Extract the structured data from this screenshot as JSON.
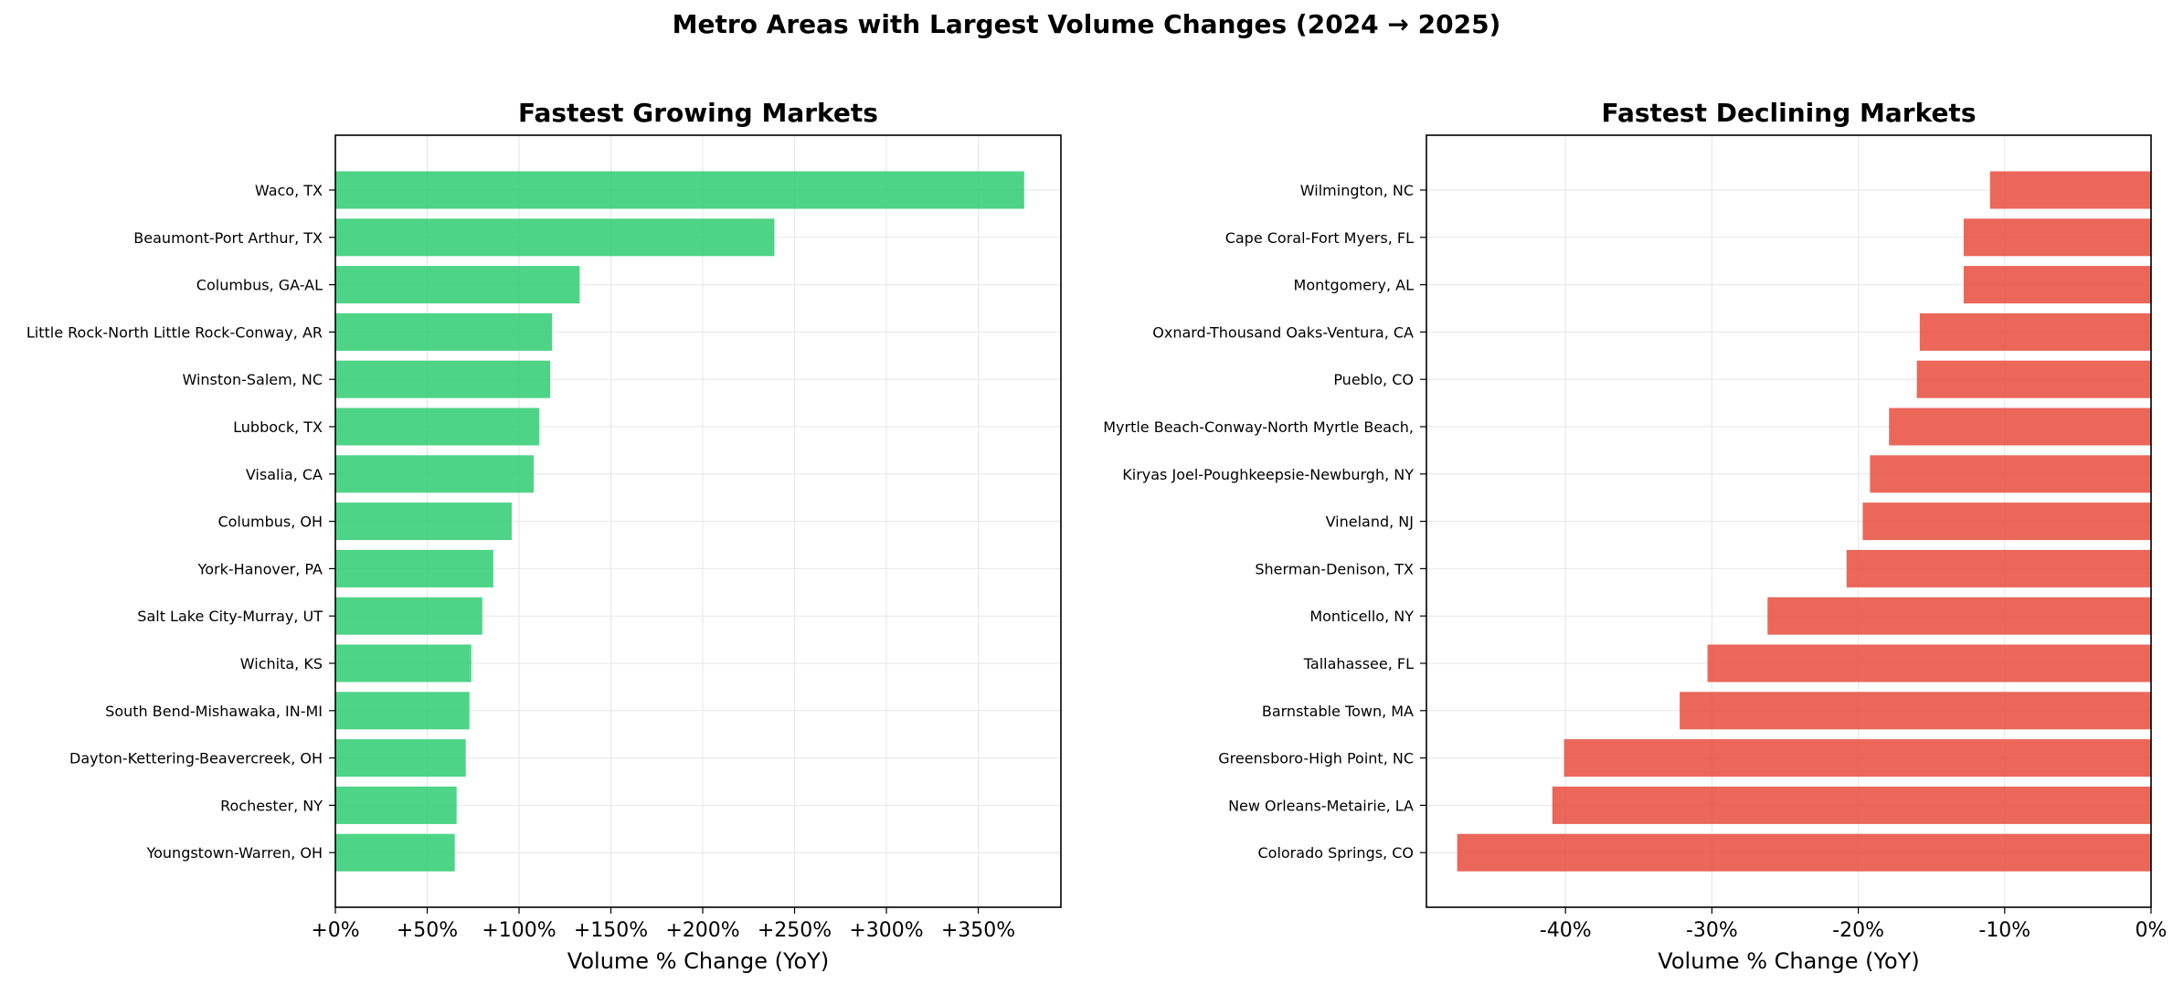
{
  "suptitle": "Metro Areas with Largest Volume Changes (2024 → 2025)",
  "colors": {
    "growth": "#2ecc71",
    "decline": "#e74c3c",
    "grid": "#e6e6e6",
    "axis": "#000000"
  },
  "chart_data": [
    {
      "type": "bar",
      "orientation": "horizontal",
      "title": "Fastest Growing Markets",
      "xlabel": "Volume % Change (YoY)",
      "ylabel": "",
      "xlim": [
        0,
        395
      ],
      "xticks": [
        0,
        50,
        100,
        150,
        200,
        250,
        300,
        350
      ],
      "xtick_labels": [
        "+0%",
        "+50%",
        "+100%",
        "+150%",
        "+200%",
        "+250%",
        "+300%",
        "+350%"
      ],
      "grid": true,
      "categories": [
        "Waco, TX",
        "Beaumont-Port Arthur, TX",
        "Columbus, GA-AL",
        "Little Rock-North Little Rock-Conway, AR",
        "Winston-Salem, NC",
        "Lubbock, TX",
        "Visalia, CA",
        "Columbus, OH",
        "York-Hanover, PA",
        "Salt Lake City-Murray, UT",
        "Wichita, KS",
        "South Bend-Mishawaka, IN-MI",
        "Dayton-Kettering-Beavercreek, OH",
        "Rochester, NY",
        "Youngstown-Warren, OH"
      ],
      "values": [
        375,
        239,
        133,
        118,
        117,
        111,
        108,
        96,
        86,
        80,
        74,
        73,
        71,
        66,
        65
      ]
    },
    {
      "type": "bar",
      "orientation": "horizontal",
      "title": "Fastest Declining Markets",
      "xlabel": "Volume % Change (YoY)",
      "ylabel": "",
      "xlim": [
        -49.5,
        0
      ],
      "xticks": [
        -40,
        -30,
        -20,
        -10,
        0
      ],
      "xtick_labels": [
        "-40%",
        "-30%",
        "-20%",
        "-10%",
        "0%"
      ],
      "grid": true,
      "categories": [
        "Wilmington, NC",
        "Cape Coral-Fort Myers, FL",
        "Montgomery, AL",
        "Oxnard-Thousand Oaks-Ventura, CA",
        "Pueblo, CO",
        "Myrtle Beach-Conway-North Myrtle Beach, ",
        "Kiryas Joel-Poughkeepsie-Newburgh, NY",
        "Vineland, NJ",
        "Sherman-Denison, TX",
        "Monticello, NY",
        "Tallahassee, FL",
        "Barnstable Town, MA",
        "Greensboro-High Point, NC",
        "New Orleans-Metairie, LA",
        "Colorado Springs, CO"
      ],
      "values": [
        -11.0,
        -12.8,
        -12.8,
        -15.8,
        -16.0,
        -17.9,
        -19.2,
        -19.7,
        -20.8,
        -26.2,
        -30.3,
        -32.2,
        -40.1,
        -40.9,
        -47.4
      ]
    }
  ]
}
